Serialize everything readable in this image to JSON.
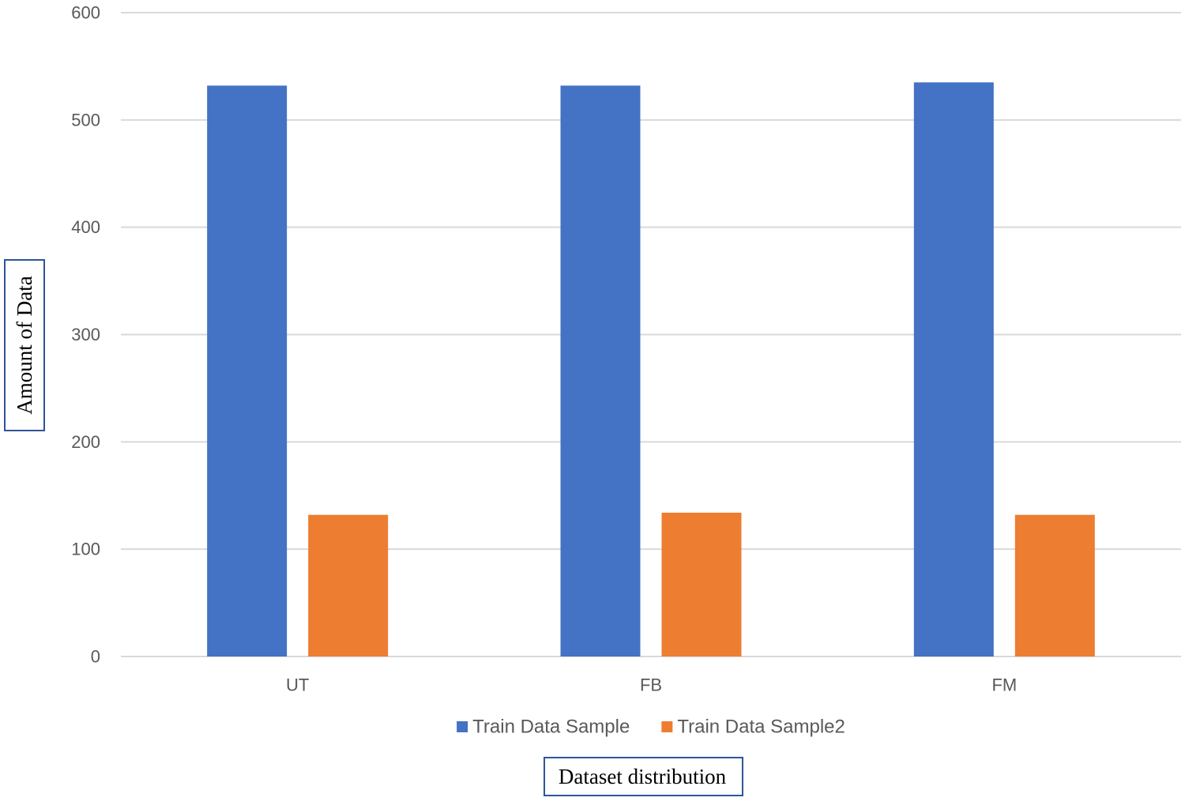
{
  "chart_data": {
    "type": "bar",
    "categories": [
      "UT",
      "FB",
      "FM"
    ],
    "series": [
      {
        "name": "Train Data Sample",
        "values": [
          532,
          532,
          535
        ],
        "color": "#4472C4"
      },
      {
        "name": "Train Data Sample2",
        "values": [
          132,
          134,
          132
        ],
        "color": "#ED7D31"
      }
    ],
    "ylim": [
      0,
      600
    ],
    "yticks": [
      0,
      100,
      200,
      300,
      400,
      500,
      600
    ],
    "ytick_labels": [
      "0",
      "100",
      "200",
      "300",
      "400",
      "500",
      "600"
    ],
    "xlabel": "Dataset distribution",
    "ylabel": "Amount of Data",
    "grid": true,
    "legend_position": "bottom",
    "colors": {
      "gridline": "#D9D9D9",
      "tick_text": "#595959",
      "title_box_border": "#2F5597"
    }
  }
}
